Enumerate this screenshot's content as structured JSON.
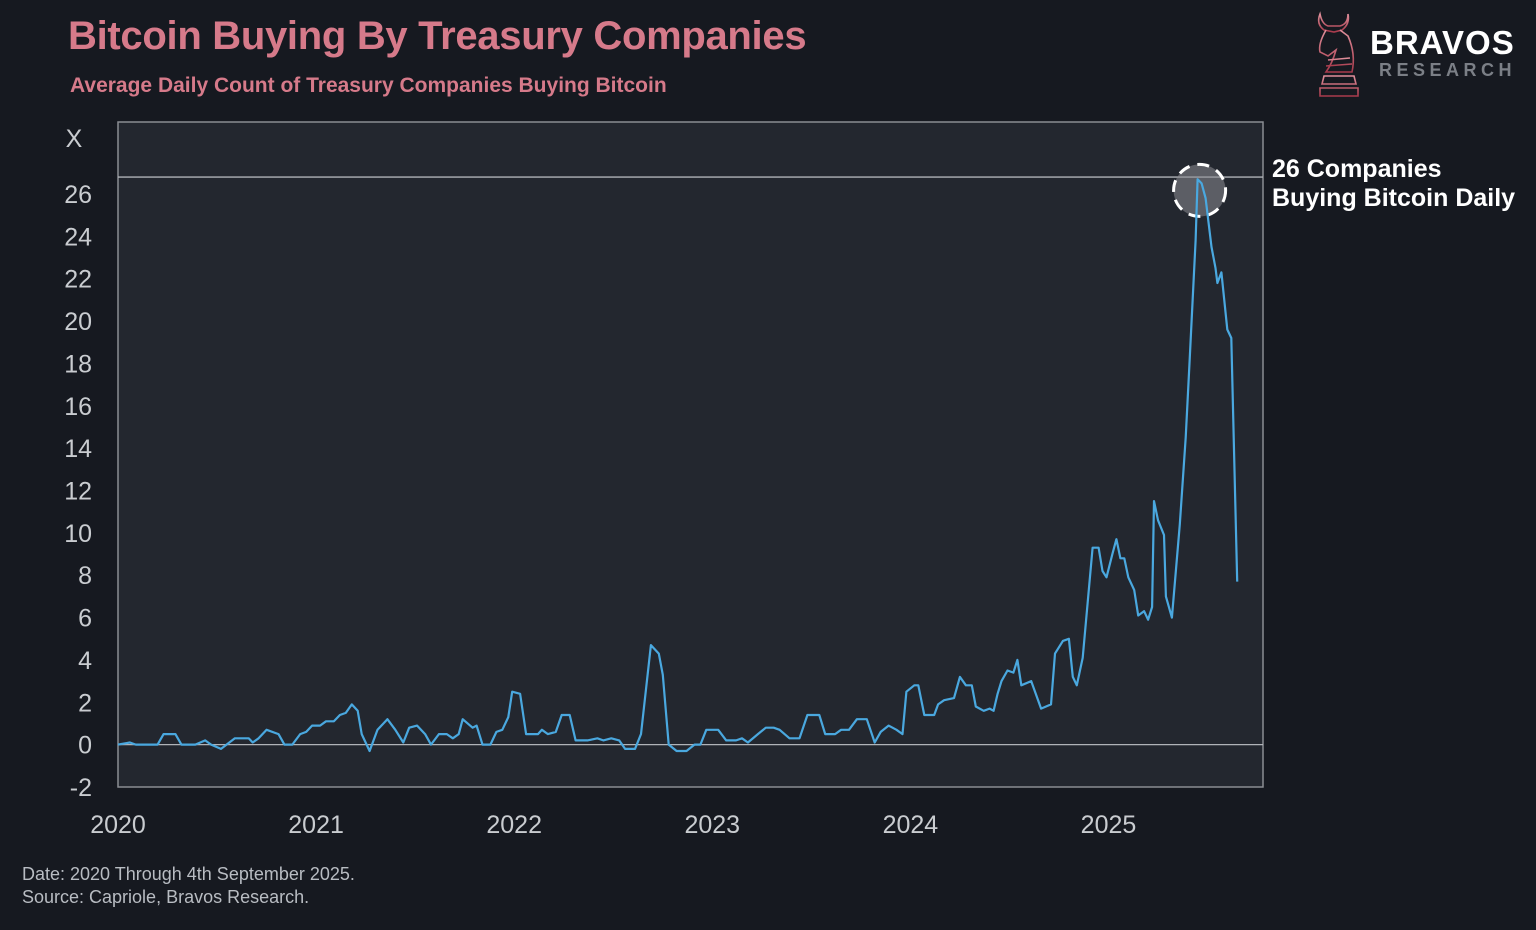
{
  "header": {
    "title": "Bitcoin Buying By Treasury Companies",
    "subtitle": "Average Daily Count of Treasury Companies Buying Bitcoin"
  },
  "logo": {
    "name": "BRAVOS",
    "tagline": "RESEARCH",
    "icon": "bull-chess-knight-icon"
  },
  "footer": {
    "date_note": "Date: 2020 Through 4th September 2025.",
    "source_note": "Source: Capriole, Bravos Research."
  },
  "colors": {
    "background": "#161920",
    "plot_bg": "#23272f",
    "title": "#d67a8a",
    "line": "#4aa8df",
    "frame": "#8a8d92"
  },
  "chart_data": {
    "type": "line",
    "title": "Bitcoin Buying By Treasury Companies",
    "subtitle": "Average Daily Count of Treasury Companies Buying Bitcoin",
    "xlabel": "",
    "ylabel": "X",
    "xlim": [
      2020,
      2025.78
    ],
    "ylim": [
      -2,
      29.4
    ],
    "xticks": [
      "2020",
      "2021",
      "2022",
      "2023",
      "2024",
      "2025"
    ],
    "yticks": [
      "-2",
      "0",
      "2",
      "4",
      "6",
      "8",
      "10",
      "12",
      "14",
      "16",
      "18",
      "20",
      "22",
      "24",
      "26"
    ],
    "grid": false,
    "reference_lines": [
      0,
      26.8
    ],
    "annotation": {
      "text_line1": "26 Companies",
      "text_line2": "Buying Bitcoin Daily",
      "at": [
        2025.46,
        26.5
      ],
      "marker": "dashed-circle"
    },
    "series": [
      {
        "points": [
          [
            2020.0,
            0
          ],
          [
            2020.06,
            0.1
          ],
          [
            2020.09,
            0
          ],
          [
            2020.2,
            0
          ],
          [
            2020.23,
            0.5
          ],
          [
            2020.29,
            0.5
          ],
          [
            2020.32,
            0
          ],
          [
            2020.39,
            0
          ],
          [
            2020.44,
            0.2
          ],
          [
            2020.47,
            0
          ],
          [
            2020.52,
            -0.2
          ],
          [
            2020.59,
            0.3
          ],
          [
            2020.66,
            0.3
          ],
          [
            2020.68,
            0.1
          ],
          [
            2020.71,
            0.3
          ],
          [
            2020.75,
            0.7
          ],
          [
            2020.81,
            0.5
          ],
          [
            2020.84,
            0
          ],
          [
            2020.88,
            0
          ],
          [
            2020.92,
            0.5
          ],
          [
            2020.95,
            0.6
          ],
          [
            2020.98,
            0.9
          ],
          [
            2021.02,
            0.9
          ],
          [
            2021.05,
            1.1
          ],
          [
            2021.09,
            1.1
          ],
          [
            2021.12,
            1.4
          ],
          [
            2021.15,
            1.5
          ],
          [
            2021.18,
            1.9
          ],
          [
            2021.21,
            1.6
          ],
          [
            2021.23,
            0.5
          ],
          [
            2021.27,
            -0.3
          ],
          [
            2021.31,
            0.7
          ],
          [
            2021.36,
            1.2
          ],
          [
            2021.4,
            0.7
          ],
          [
            2021.44,
            0.1
          ],
          [
            2021.47,
            0.8
          ],
          [
            2021.51,
            0.9
          ],
          [
            2021.55,
            0.5
          ],
          [
            2021.58,
            0
          ],
          [
            2021.62,
            0.5
          ],
          [
            2021.66,
            0.5
          ],
          [
            2021.69,
            0.3
          ],
          [
            2021.72,
            0.5
          ],
          [
            2021.74,
            1.2
          ],
          [
            2021.79,
            0.8
          ],
          [
            2021.81,
            0.9
          ],
          [
            2021.84,
            0
          ],
          [
            2021.88,
            0
          ],
          [
            2021.91,
            0.6
          ],
          [
            2021.94,
            0.7
          ],
          [
            2021.97,
            1.3
          ],
          [
            2021.99,
            2.5
          ],
          [
            2022.03,
            2.4
          ],
          [
            2022.06,
            0.5
          ],
          [
            2022.12,
            0.5
          ],
          [
            2022.14,
            0.7
          ],
          [
            2022.17,
            0.5
          ],
          [
            2022.21,
            0.6
          ],
          [
            2022.24,
            1.4
          ],
          [
            2022.28,
            1.4
          ],
          [
            2022.31,
            0.2
          ],
          [
            2022.37,
            0.2
          ],
          [
            2022.42,
            0.3
          ],
          [
            2022.45,
            0.2
          ],
          [
            2022.49,
            0.3
          ],
          [
            2022.53,
            0.2
          ],
          [
            2022.56,
            -0.2
          ],
          [
            2022.61,
            -0.2
          ],
          [
            2022.64,
            0.5
          ],
          [
            2022.69,
            4.7
          ],
          [
            2022.73,
            4.3
          ],
          [
            2022.75,
            3.3
          ],
          [
            2022.78,
            0
          ],
          [
            2022.82,
            -0.3
          ],
          [
            2022.87,
            -0.3
          ],
          [
            2022.91,
            0
          ],
          [
            2022.94,
            0
          ],
          [
            2022.97,
            0.7
          ],
          [
            2023.03,
            0.7
          ],
          [
            2023.07,
            0.2
          ],
          [
            2023.12,
            0.2
          ],
          [
            2023.15,
            0.3
          ],
          [
            2023.18,
            0.1
          ],
          [
            2023.23,
            0.5
          ],
          [
            2023.27,
            0.8
          ],
          [
            2023.31,
            0.8
          ],
          [
            2023.34,
            0.7
          ],
          [
            2023.39,
            0.3
          ],
          [
            2023.44,
            0.3
          ],
          [
            2023.48,
            1.4
          ],
          [
            2023.54,
            1.4
          ],
          [
            2023.57,
            0.5
          ],
          [
            2023.62,
            0.5
          ],
          [
            2023.65,
            0.7
          ],
          [
            2023.69,
            0.7
          ],
          [
            2023.73,
            1.2
          ],
          [
            2023.78,
            1.2
          ],
          [
            2023.82,
            0.1
          ],
          [
            2023.85,
            0.6
          ],
          [
            2023.89,
            0.9
          ],
          [
            2023.93,
            0.7
          ],
          [
            2023.96,
            0.5
          ],
          [
            2023.98,
            2.5
          ],
          [
            2024.02,
            2.8
          ],
          [
            2024.04,
            2.8
          ],
          [
            2024.07,
            1.4
          ],
          [
            2024.12,
            1.4
          ],
          [
            2024.14,
            1.9
          ],
          [
            2024.17,
            2.1
          ],
          [
            2024.22,
            2.2
          ],
          [
            2024.25,
            3.2
          ],
          [
            2024.28,
            2.8
          ],
          [
            2024.31,
            2.8
          ],
          [
            2024.33,
            1.8
          ],
          [
            2024.37,
            1.6
          ],
          [
            2024.4,
            1.7
          ],
          [
            2024.42,
            1.6
          ],
          [
            2024.44,
            2.4
          ],
          [
            2024.46,
            3.0
          ],
          [
            2024.49,
            3.5
          ],
          [
            2024.52,
            3.4
          ],
          [
            2024.54,
            4.0
          ],
          [
            2024.56,
            2.8
          ],
          [
            2024.61,
            3.0
          ],
          [
            2024.66,
            1.7
          ],
          [
            2024.71,
            1.9
          ],
          [
            2024.73,
            4.3
          ],
          [
            2024.77,
            4.9
          ],
          [
            2024.8,
            5.0
          ],
          [
            2024.82,
            3.2
          ],
          [
            2024.84,
            2.8
          ],
          [
            2024.87,
            4.1
          ],
          [
            2024.92,
            9.3
          ],
          [
            2024.95,
            9.3
          ],
          [
            2024.97,
            8.2
          ],
          [
            2024.99,
            7.9
          ],
          [
            2025.02,
            9.0
          ],
          [
            2025.04,
            9.7
          ],
          [
            2025.06,
            8.8
          ],
          [
            2025.08,
            8.8
          ],
          [
            2025.1,
            7.9
          ],
          [
            2025.13,
            7.3
          ],
          [
            2025.15,
            6.1
          ],
          [
            2025.18,
            6.3
          ],
          [
            2025.2,
            5.9
          ],
          [
            2025.22,
            6.5
          ],
          [
            2025.23,
            11.5
          ],
          [
            2025.25,
            10.6
          ],
          [
            2025.28,
            9.9
          ],
          [
            2025.29,
            7.0
          ],
          [
            2025.32,
            6.0
          ],
          [
            2025.36,
            10.4
          ],
          [
            2025.39,
            14.5
          ],
          [
            2025.41,
            18.2
          ],
          [
            2025.44,
            23.8
          ],
          [
            2025.45,
            26.7
          ],
          [
            2025.47,
            26.5
          ],
          [
            2025.49,
            25.8
          ],
          [
            2025.52,
            23.5
          ],
          [
            2025.54,
            22.5
          ],
          [
            2025.55,
            21.8
          ],
          [
            2025.57,
            22.3
          ],
          [
            2025.6,
            19.6
          ],
          [
            2025.62,
            19.2
          ],
          [
            2025.65,
            7.7
          ]
        ]
      }
    ]
  }
}
